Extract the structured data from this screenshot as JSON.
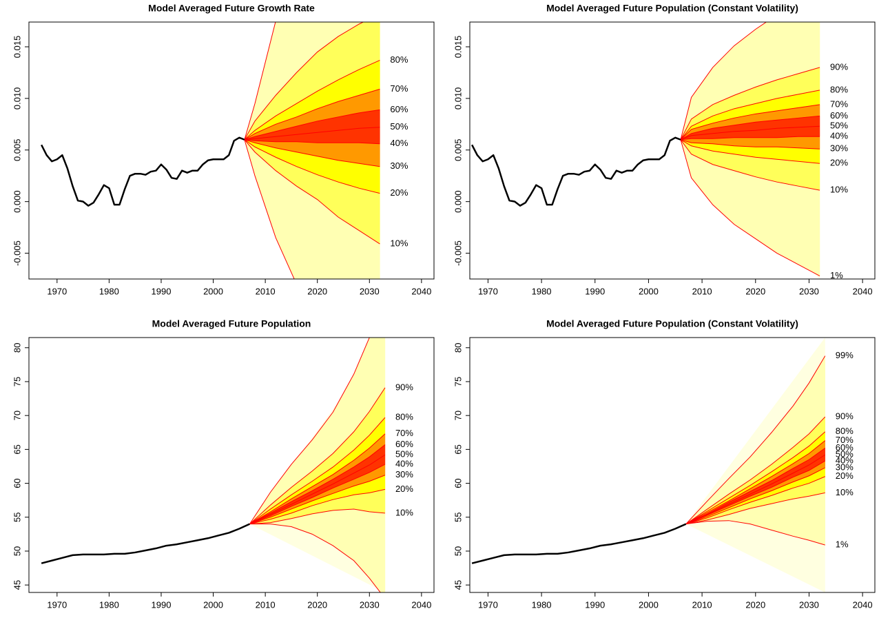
{
  "chart_data": [
    {
      "type": "fan",
      "title": "Model Averaged Future Growth Rate",
      "xlim": [
        1964.6,
        2042.4
      ],
      "xticks": [
        1970,
        1980,
        1990,
        2000,
        2010,
        2020,
        2030,
        2040
      ],
      "ylim": [
        -0.0075,
        0.0174
      ],
      "yticks": [
        {
          "value": -0.005,
          "label": "-0.005"
        },
        {
          "value": 0,
          "label": "0.000"
        },
        {
          "value": 0.005,
          "label": "0.005"
        },
        {
          "value": 0.01,
          "label": "0.010"
        },
        {
          "value": 0.015,
          "label": "0.015"
        }
      ],
      "history": {
        "color": "#000000",
        "x": [
          1967,
          1968,
          1969,
          1970,
          1971,
          1972,
          1973,
          1974,
          1975,
          1976,
          1977,
          1978,
          1979,
          1980,
          1981,
          1982,
          1983,
          1984,
          1985,
          1986,
          1987,
          1988,
          1989,
          1990,
          1991,
          1992,
          1993,
          1994,
          1995,
          1996,
          1997,
          1998,
          1999,
          2000,
          2001,
          2002,
          2003,
          2004,
          2005,
          2006
        ],
        "values": [
          0.0055,
          0.0045,
          0.0039,
          0.0041,
          0.0045,
          0.0032,
          0.0015,
          0.0001,
          0.0,
          -0.0004,
          -0.0001,
          0.0007,
          0.0016,
          0.0013,
          -0.0003,
          -0.0003,
          0.0012,
          0.0025,
          0.0027,
          0.0027,
          0.0026,
          0.0029,
          0.003,
          0.0036,
          0.0031,
          0.0023,
          0.0022,
          0.003,
          0.0028,
          0.003,
          0.003,
          0.0036,
          0.004,
          0.0041,
          0.0041,
          0.0041,
          0.0045,
          0.0059,
          0.0062,
          0.006
        ]
      },
      "fan": {
        "line_color": "#ff0000",
        "colors": [
          "#ffffe0",
          "#ffff00",
          "#ff0000"
        ],
        "x": [
          2006,
          2008,
          2012,
          2016,
          2020,
          2024,
          2028,
          2032
        ],
        "series": [
          {
            "values": [
              0.006,
              0.0095,
              0.0175,
              0.024,
              0.03,
              0.035,
              0.04,
              0.045
            ]
          },
          {
            "values": [
              0.006,
              0.0078,
              0.0103,
              0.0125,
              0.0145,
              0.016,
              0.0172,
              0.0182
            ]
          },
          {
            "name": "80%",
            "values": [
              0.006,
              0.0069,
              0.0083,
              0.0095,
              0.0107,
              0.0118,
              0.0128,
              0.0137
            ]
          },
          {
            "name": "70%",
            "values": [
              0.006,
              0.0066,
              0.0075,
              0.0082,
              0.009,
              0.0097,
              0.0103,
              0.0109
            ]
          },
          {
            "name": "60%",
            "values": [
              0.006,
              0.0063,
              0.0068,
              0.0073,
              0.0078,
              0.0082,
              0.0086,
              0.0089
            ]
          },
          {
            "name": "50%",
            "values": [
              0.006,
              0.0061,
              0.0063,
              0.0065,
              0.0067,
              0.0069,
              0.0071,
              0.0072
            ]
          },
          {
            "name": "40%",
            "values": [
              0.006,
              0.0059,
              0.0058,
              0.0058,
              0.0057,
              0.0057,
              0.0057,
              0.0056
            ]
          },
          {
            "name": "30%",
            "values": [
              0.006,
              0.0057,
              0.0052,
              0.0048,
              0.0044,
              0.004,
              0.0037,
              0.0034
            ]
          },
          {
            "name": "20%",
            "values": [
              0.006,
              0.0053,
              0.0043,
              0.0034,
              0.0026,
              0.0019,
              0.0013,
              0.0008
            ]
          },
          {
            "name": "10%",
            "values": [
              0.006,
              0.0048,
              0.003,
              0.0015,
              0.0002,
              -0.0015,
              -0.0028,
              -0.0041
            ]
          },
          {
            "values": [
              0.006,
              0.0025,
              -0.0035,
              -0.008,
              -0.012,
              -0.016,
              -0.019,
              -0.022
            ]
          }
        ]
      }
    },
    {
      "type": "fan",
      "title": "Model Averaged Future Population (Constant Volatility)",
      "xlim": [
        1966.6,
        2042.3
      ],
      "xticks": [
        1970,
        1980,
        1990,
        2000,
        2010,
        2020,
        2030,
        2040
      ],
      "ylim": [
        -0.0075,
        0.0174
      ],
      "yticks": [
        {
          "value": -0.005,
          "label": "-0.005"
        },
        {
          "value": 0,
          "label": "0.000"
        },
        {
          "value": 0.005,
          "label": "0.005"
        },
        {
          "value": 0.01,
          "label": "0.010"
        },
        {
          "value": 0.015,
          "label": "0.015"
        }
      ],
      "history": {
        "color": "#000000",
        "x": [
          1967,
          1968,
          1969,
          1970,
          1971,
          1972,
          1973,
          1974,
          1975,
          1976,
          1977,
          1978,
          1979,
          1980,
          1981,
          1982,
          1983,
          1984,
          1985,
          1986,
          1987,
          1988,
          1989,
          1990,
          1991,
          1992,
          1993,
          1994,
          1995,
          1996,
          1997,
          1998,
          1999,
          2000,
          2001,
          2002,
          2003,
          2004,
          2005,
          2006
        ],
        "values": [
          0.0055,
          0.0045,
          0.0039,
          0.0041,
          0.0045,
          0.0032,
          0.0015,
          0.0001,
          0.0,
          -0.0004,
          -0.0001,
          0.0007,
          0.0016,
          0.0013,
          -0.0003,
          -0.0003,
          0.0012,
          0.0025,
          0.0027,
          0.0027,
          0.0026,
          0.0029,
          0.003,
          0.0036,
          0.0031,
          0.0023,
          0.0022,
          0.003,
          0.0028,
          0.003,
          0.003,
          0.0036,
          0.004,
          0.0041,
          0.0041,
          0.0041,
          0.0045,
          0.0059,
          0.0062,
          0.006
        ]
      },
      "fan": {
        "line_color": "#ff0000",
        "colors": [
          "#ffffe0",
          "#ffff00",
          "#ff0000"
        ],
        "x": [
          2006,
          2008,
          2012,
          2016,
          2020,
          2024,
          2028,
          2032
        ],
        "series": [
          {
            "values": [
              0.006,
              0.0101,
              0.013,
              0.0151,
              0.0167,
              0.0181,
              0.0194,
              0.0206
            ]
          },
          {
            "name": "90%",
            "values": [
              0.006,
              0.008,
              0.0094,
              0.0103,
              0.0111,
              0.0118,
              0.0124,
              0.013
            ]
          },
          {
            "name": "80%",
            "values": [
              0.006,
              0.0073,
              0.0083,
              0.009,
              0.0095,
              0.01,
              0.0104,
              0.0108
            ]
          },
          {
            "name": "70%",
            "values": [
              0.006,
              0.007,
              0.0076,
              0.0081,
              0.0085,
              0.0088,
              0.0091,
              0.0094
            ]
          },
          {
            "name": "60%",
            "values": [
              0.006,
              0.0066,
              0.0071,
              0.0074,
              0.0077,
              0.0079,
              0.0081,
              0.0083
            ]
          },
          {
            "name": "50%",
            "values": [
              0.006,
              0.0064,
              0.0066,
              0.0068,
              0.0069,
              0.0071,
              0.0072,
              0.0073
            ]
          },
          {
            "name": "40%",
            "values": [
              0.006,
              0.0061,
              0.0061,
              0.0062,
              0.0062,
              0.0062,
              0.0063,
              0.0063
            ]
          },
          {
            "name": "30%",
            "values": [
              0.006,
              0.0057,
              0.0056,
              0.0054,
              0.0053,
              0.0053,
              0.0052,
              0.0051
            ]
          },
          {
            "name": "20%",
            "values": [
              0.006,
              0.0054,
              0.0049,
              0.0046,
              0.0043,
              0.0041,
              0.0039,
              0.0037
            ]
          },
          {
            "name": "10%",
            "values": [
              0.006,
              0.0046,
              0.0036,
              0.003,
              0.0024,
              0.0019,
              0.0015,
              0.0011
            ]
          },
          {
            "name": "1%",
            "values": [
              0.006,
              0.0023,
              -0.0003,
              -0.0022,
              -0.0036,
              -0.005,
              -0.0061,
              -0.0072
            ]
          }
        ]
      }
    },
    {
      "type": "fan",
      "title": "Model Averaged Future Population",
      "xlim": [
        1964.6,
        2042.4
      ],
      "xticks": [
        1970,
        1980,
        1990,
        2000,
        2010,
        2020,
        2030,
        2040
      ],
      "ylim": [
        43.9,
        81.5
      ],
      "yticks": [
        45,
        50,
        55,
        60,
        65,
        70,
        75,
        80
      ],
      "history": {
        "color": "#000000",
        "x": [
          1967,
          1969,
          1971,
          1973,
          1975,
          1977,
          1979,
          1981,
          1983,
          1985,
          1987,
          1989,
          1991,
          1993,
          1995,
          1997,
          1999,
          2001,
          2003,
          2005,
          2007
        ],
        "values": [
          48.2,
          48.6,
          49.0,
          49.4,
          49.5,
          49.5,
          49.5,
          49.6,
          49.6,
          49.8,
          50.1,
          50.4,
          50.8,
          51.0,
          51.3,
          51.6,
          51.9,
          52.3,
          52.7,
          53.3,
          54.0
        ]
      },
      "fan": {
        "line_color": "#ff0000",
        "colors": [
          "#ffffe0",
          "#ffff00",
          "#ff0000"
        ],
        "x": [
          2007,
          2011,
          2015,
          2019,
          2023,
          2027,
          2030,
          2033
        ],
        "series": [
          {
            "values": [
              54,
              58.7,
              62.8,
              66.4,
              70.5,
              76.1,
              81.5,
              87.7
            ]
          },
          {
            "name": "90%",
            "values": [
              54,
              56.8,
              59.4,
              61.8,
              64.4,
              67.6,
              70.6,
              74.1
            ]
          },
          {
            "name": "80%",
            "values": [
              54,
              56.2,
              58.3,
              60.3,
              62.4,
              64.9,
              67.1,
              69.7
            ]
          },
          {
            "name": "70%",
            "values": [
              54,
              55.8,
              57.7,
              59.5,
              61.3,
              63.4,
              65.2,
              67.3
            ]
          },
          {
            "name": "60%",
            "values": [
              54,
              55.6,
              57.3,
              58.9,
              60.6,
              62.4,
              63.9,
              65.7
            ]
          },
          {
            "name": "50%",
            "values": [
              54,
              55.4,
              56.9,
              58.4,
              59.9,
              61.5,
              62.7,
              64.2
            ]
          },
          {
            "name": "40%",
            "values": [
              54,
              55.2,
              56.6,
              57.9,
              59.3,
              60.6,
              61.6,
              62.8
            ]
          },
          {
            "name": "30%",
            "values": [
              54,
              55.0,
              56.2,
              57.4,
              58.5,
              59.6,
              60.3,
              61.2
            ]
          },
          {
            "name": "20%",
            "values": [
              54,
              54.7,
              55.6,
              56.7,
              57.6,
              58.3,
              58.6,
              59.1
            ]
          },
          {
            "name": "10%",
            "values": [
              54,
              54.2,
              54.8,
              55.5,
              56.0,
              56.2,
              55.8,
              55.6
            ]
          },
          {
            "values": [
              54,
              54.0,
              53.6,
              52.5,
              50.8,
              48.6,
              46.0,
              43.0
            ]
          }
        ]
      }
    },
    {
      "type": "fan",
      "title": "Model Averaged Future Population (Constant Volatility)",
      "xlim": [
        1966.6,
        2042.3
      ],
      "xticks": [
        1970,
        1980,
        1990,
        2000,
        2010,
        2020,
        2030,
        2040
      ],
      "ylim": [
        43.9,
        81.5
      ],
      "yticks": [
        45,
        50,
        55,
        60,
        65,
        70,
        75,
        80
      ],
      "history": {
        "color": "#000000",
        "x": [
          1967,
          1969,
          1971,
          1973,
          1975,
          1977,
          1979,
          1981,
          1983,
          1985,
          1987,
          1989,
          1991,
          1993,
          1995,
          1997,
          1999,
          2001,
          2003,
          2005,
          2007
        ],
        "values": [
          48.2,
          48.6,
          49.0,
          49.4,
          49.5,
          49.5,
          49.5,
          49.6,
          49.6,
          49.8,
          50.1,
          50.4,
          50.8,
          51.0,
          51.3,
          51.6,
          51.9,
          52.3,
          52.7,
          53.3,
          54.0
        ]
      },
      "fan": {
        "line_color": "#ff0000",
        "colors": [
          "#ffffe0",
          "#ffff00",
          "#ff0000"
        ],
        "x": [
          2007,
          2011,
          2015,
          2019,
          2023,
          2027,
          2030,
          2033
        ],
        "series": [
          {
            "name": "99%",
            "values": [
              54,
              57.4,
              60.7,
              63.9,
              67.5,
              71.4,
              74.8,
              78.8
            ]
          },
          {
            "name": "90%",
            "values": [
              54,
              56.2,
              58.4,
              60.5,
              62.8,
              65.3,
              67.3,
              69.8
            ]
          },
          {
            "name": "80%",
            "values": [
              54,
              55.9,
              57.8,
              59.7,
              61.7,
              63.8,
              65.5,
              67.6
            ]
          },
          {
            "name": "70%",
            "values": [
              54,
              55.7,
              57.4,
              59.2,
              61.0,
              62.9,
              64.4,
              66.3
            ]
          },
          {
            "name": "60%",
            "values": [
              54,
              55.5,
              57.2,
              58.8,
              60.4,
              62.2,
              63.5,
              65.2
            ]
          },
          {
            "name": "50%",
            "values": [
              54,
              55.4,
              56.9,
              58.4,
              59.9,
              61.5,
              62.7,
              64.2
            ]
          },
          {
            "name": "40%",
            "values": [
              54,
              55.3,
              56.7,
              58.1,
              59.4,
              60.9,
              61.9,
              63.3
            ]
          },
          {
            "name": "30%",
            "values": [
              54,
              55.1,
              56.4,
              57.7,
              58.9,
              60.2,
              61.1,
              62.3
            ]
          },
          {
            "name": "20%",
            "values": [
              54,
              54.9,
              56.1,
              57.2,
              58.2,
              59.3,
              60.0,
              61.0
            ]
          },
          {
            "name": "10%",
            "values": [
              54,
              54.6,
              55.4,
              56.3,
              57.0,
              57.7,
              58.1,
              58.6
            ]
          },
          {
            "name": "1%",
            "values": [
              54,
              54.4,
              54.5,
              54.0,
              53.1,
              52.2,
              51.6,
              50.9
            ]
          }
        ]
      }
    }
  ]
}
